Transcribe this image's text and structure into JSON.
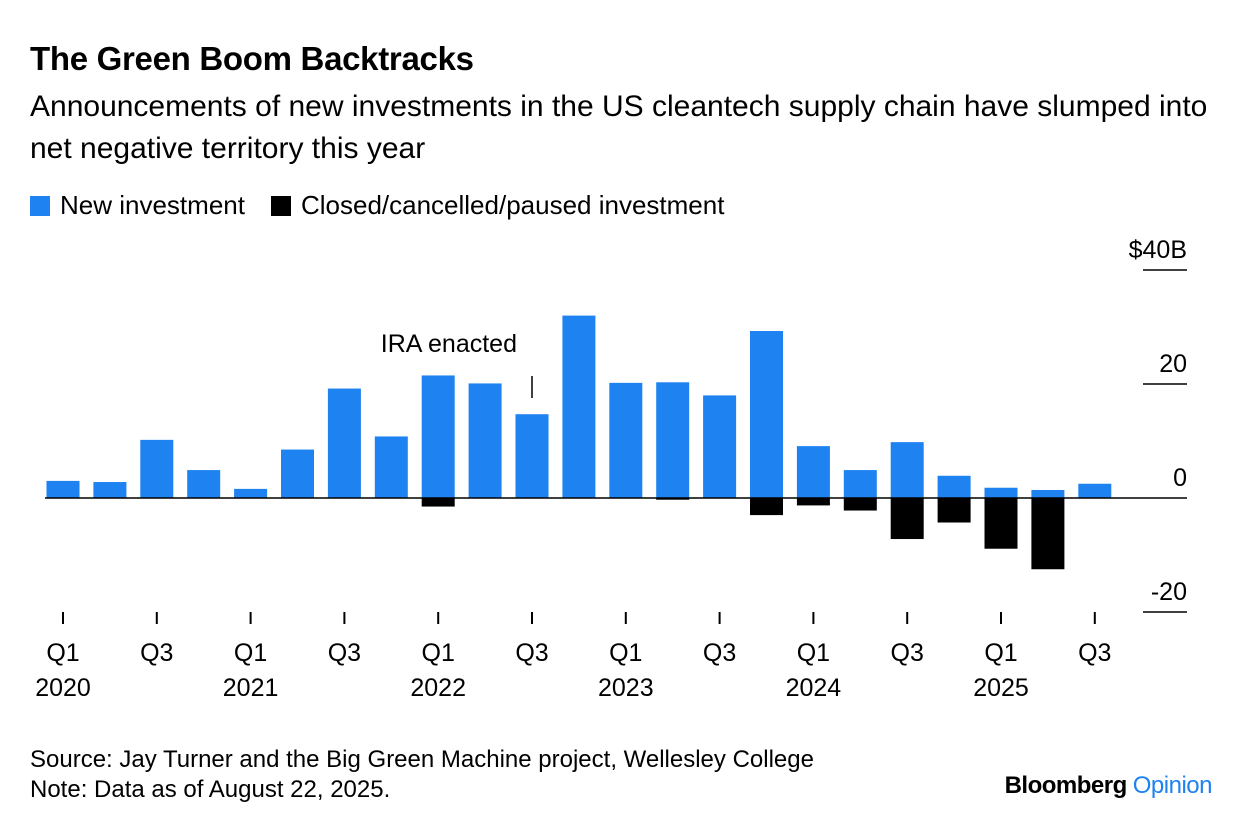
{
  "title": "The Green Boom Backtracks",
  "subtitle": "Announcements of new investments in the US cleantech supply chain have slumped into net negative territory this year",
  "legend": [
    {
      "label": "New investment",
      "color": "#1E82F0"
    },
    {
      "label": "Closed/cancelled/paused investment",
      "color": "#000000"
    }
  ],
  "source": "Source: Jay Turner and the Big Green Machine project, Wellesley College",
  "note": "Note: Data as of August 22, 2025.",
  "brand": {
    "name": "Bloomberg",
    "suffix": "Opinion"
  },
  "chart_data": {
    "type": "bar",
    "categories": [
      "Q1 2020",
      "Q2 2020",
      "Q3 2020",
      "Q4 2020",
      "Q1 2021",
      "Q2 2021",
      "Q3 2021",
      "Q4 2021",
      "Q1 2022",
      "Q2 2022",
      "Q3 2022",
      "Q4 2022",
      "Q1 2023",
      "Q2 2023",
      "Q3 2023",
      "Q4 2023",
      "Q1 2024",
      "Q2 2024",
      "Q3 2024",
      "Q4 2024",
      "Q1 2025",
      "Q2 2025",
      "Q3 2025"
    ],
    "series": [
      {
        "name": "New investment",
        "color": "#1E82F0",
        "values": [
          3.0,
          2.8,
          10.2,
          4.9,
          1.6,
          8.5,
          19.2,
          10.8,
          21.5,
          20.1,
          14.7,
          32.0,
          20.2,
          20.3,
          18.0,
          29.3,
          9.1,
          4.9,
          9.8,
          3.9,
          1.8,
          1.4,
          2.5
        ]
      },
      {
        "name": "Closed/cancelled/paused investment",
        "color": "#000000",
        "values": [
          0,
          0,
          0,
          0,
          0,
          0,
          0,
          0,
          -1.5,
          0,
          0,
          0,
          0,
          -0.3,
          0,
          -3.0,
          -1.3,
          -2.2,
          -7.2,
          -4.3,
          -8.9,
          -12.5,
          0
        ]
      }
    ],
    "ylim": [
      -20,
      40
    ],
    "yticks": [
      {
        "value": 40,
        "label": "$40B"
      },
      {
        "value": 20,
        "label": "20"
      },
      {
        "value": 0,
        "label": "0"
      },
      {
        "value": -20,
        "label": "-20"
      }
    ],
    "xtick_labels": [
      {
        "index": 0,
        "quarter": "Q1",
        "year": "2020"
      },
      {
        "index": 2,
        "quarter": "Q3",
        "year": ""
      },
      {
        "index": 4,
        "quarter": "Q1",
        "year": "2021"
      },
      {
        "index": 6,
        "quarter": "Q3",
        "year": ""
      },
      {
        "index": 8,
        "quarter": "Q1",
        "year": "2022"
      },
      {
        "index": 10,
        "quarter": "Q3",
        "year": ""
      },
      {
        "index": 12,
        "quarter": "Q1",
        "year": "2023"
      },
      {
        "index": 14,
        "quarter": "Q3",
        "year": ""
      },
      {
        "index": 16,
        "quarter": "Q1",
        "year": "2024"
      },
      {
        "index": 18,
        "quarter": "Q3",
        "year": ""
      },
      {
        "index": 20,
        "quarter": "Q1",
        "year": "2025"
      },
      {
        "index": 22,
        "quarter": "Q3",
        "year": ""
      }
    ],
    "annotations": [
      {
        "text": "IRA enacted",
        "at_index": 10
      }
    ],
    "grid": false,
    "legend_position": "top-left"
  }
}
